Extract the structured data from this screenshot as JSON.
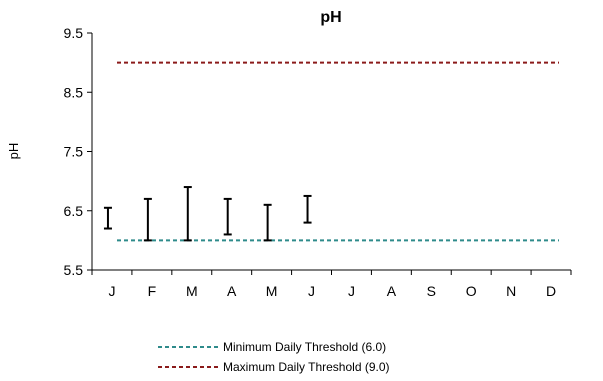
{
  "chart_data": {
    "type": "range",
    "title": "pH",
    "xlabel": "",
    "ylabel": "pH",
    "ylim": [
      5.5,
      9.5
    ],
    "yticks": [
      "9.5",
      "8.5",
      "7.5",
      "6.5",
      "5.5"
    ],
    "categories": [
      "J",
      "F",
      "M",
      "A",
      "M",
      "J",
      "J",
      "A",
      "S",
      "O",
      "N",
      "D"
    ],
    "ranges": [
      {
        "low": 6.2,
        "high": 6.55
      },
      {
        "low": 6.0,
        "high": 6.7
      },
      {
        "low": 6.0,
        "high": 6.9
      },
      {
        "low": 6.1,
        "high": 6.7
      },
      {
        "low": 6.0,
        "high": 6.6
      },
      {
        "low": 6.3,
        "high": 6.75
      },
      null,
      null,
      null,
      null,
      null,
      null
    ],
    "thresholds": [
      {
        "name": "Minimum Daily Threshold (6.0)",
        "value": 6.0,
        "color": "#2e8b8b"
      },
      {
        "name": "Maximum Daily Threshold (9.0)",
        "value": 9.0,
        "color": "#8b1a1a"
      }
    ],
    "grid": false,
    "legend_position": "bottom"
  }
}
